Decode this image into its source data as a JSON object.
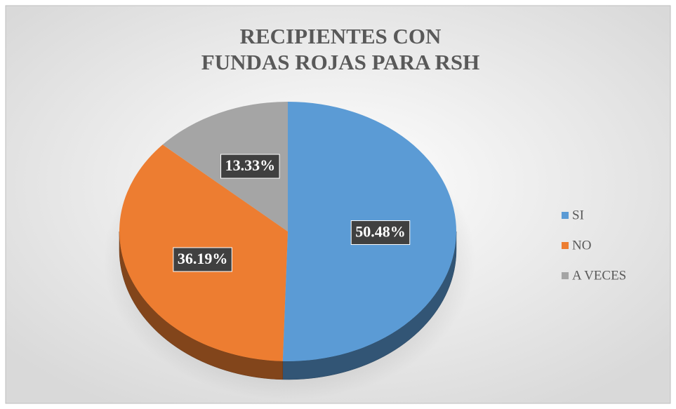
{
  "chart_data": {
    "type": "pie",
    "title": [
      "RECIPIENTES CON",
      "FUNDAS ROJAS PARA RSH"
    ],
    "categories": [
      "SI",
      "NO",
      "A VECES"
    ],
    "values": [
      50.48,
      36.19,
      13.33
    ],
    "value_labels": [
      "50.48%",
      "36.19%",
      "13.33%"
    ],
    "colors": [
      "#5b9bd5",
      "#ed7d31",
      "#a5a5a5"
    ],
    "legend": "right"
  }
}
